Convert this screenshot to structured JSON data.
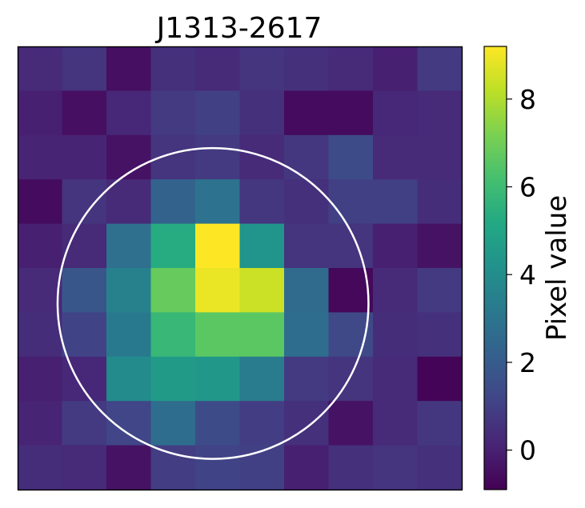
{
  "chart_data": {
    "type": "heatmap",
    "title": "J1313-2617",
    "colorbar": {
      "label": "Pixel value",
      "ticks": [
        0,
        2,
        4,
        6,
        8
      ],
      "range": [
        -0.9,
        9.2
      ],
      "colormap": "viridis"
    },
    "grid": false,
    "rows": 10,
    "cols": 10,
    "values": [
      [
        0.3,
        0.6,
        -0.5,
        0.5,
        0.3,
        0.6,
        0.5,
        0.3,
        0.0,
        0.8
      ],
      [
        0.0,
        -0.5,
        0.2,
        0.8,
        1.0,
        0.5,
        -0.6,
        -0.6,
        0.2,
        0.3
      ],
      [
        0.1,
        0.1,
        -0.4,
        0.6,
        0.8,
        0.3,
        0.7,
        1.4,
        0.3,
        0.3
      ],
      [
        -0.6,
        0.6,
        0.3,
        2.3,
        2.9,
        0.7,
        0.5,
        1.0,
        1.0,
        0.4
      ],
      [
        0.0,
        0.3,
        2.8,
        5.3,
        9.2,
        4.3,
        0.6,
        0.6,
        0.0,
        -0.4
      ],
      [
        0.3,
        1.8,
        3.5,
        6.8,
        8.9,
        8.4,
        2.6,
        -0.7,
        0.3,
        0.8
      ],
      [
        0.4,
        1.1,
        3.2,
        5.8,
        6.6,
        6.6,
        2.7,
        1.3,
        0.4,
        0.5
      ],
      [
        0.0,
        0.2,
        3.9,
        4.6,
        4.4,
        3.3,
        0.8,
        0.6,
        0.3,
        -0.8
      ],
      [
        0.1,
        0.8,
        1.2,
        2.7,
        1.4,
        0.9,
        0.5,
        -0.4,
        0.3,
        0.7
      ],
      [
        0.4,
        0.3,
        -0.4,
        0.9,
        1.1,
        1.0,
        0.0,
        0.5,
        0.6,
        0.5
      ]
    ],
    "aperture": {
      "center": [
        4.4,
        5.8
      ],
      "radius": 3.5,
      "color": "#ffffff"
    }
  }
}
